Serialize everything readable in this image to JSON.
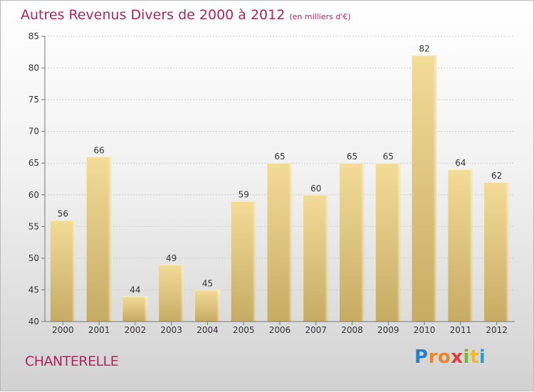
{
  "header": {
    "title": "Autres Revenus Divers de 2000 à 2012",
    "unit": "(en milliers d'€)"
  },
  "footer": {
    "commune": "CHANTERELLE",
    "logo_text": "Proxiti"
  },
  "chart_data": {
    "type": "bar",
    "title": "Autres Revenus Divers de 2000 à 2012",
    "subtitle": "(en milliers d'€)",
    "xlabel": "",
    "ylabel": "",
    "categories": [
      "2000",
      "2001",
      "2002",
      "2003",
      "2004",
      "2005",
      "2006",
      "2007",
      "2008",
      "2009",
      "2010",
      "2011",
      "2012"
    ],
    "values": [
      56,
      66,
      44,
      49,
      45,
      59,
      65,
      60,
      65,
      65,
      82,
      64,
      62
    ],
    "ylim": [
      40,
      85
    ],
    "yticks": [
      40,
      45,
      50,
      55,
      60,
      65,
      70,
      75,
      80,
      85
    ],
    "grid": true,
    "legend": "none",
    "colors": {
      "bar_top": "#f3dc98",
      "bar_bottom": "#c6ab64",
      "grid": "#cfcfcf",
      "title": "#b0245a"
    }
  }
}
